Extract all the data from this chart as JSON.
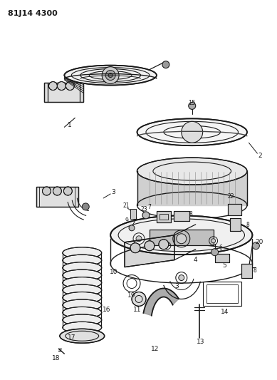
{
  "title": "81J14 4300",
  "bg_color": "#ffffff",
  "line_color": "#1a1a1a",
  "figsize": [
    3.89,
    5.33
  ],
  "dpi": 100
}
